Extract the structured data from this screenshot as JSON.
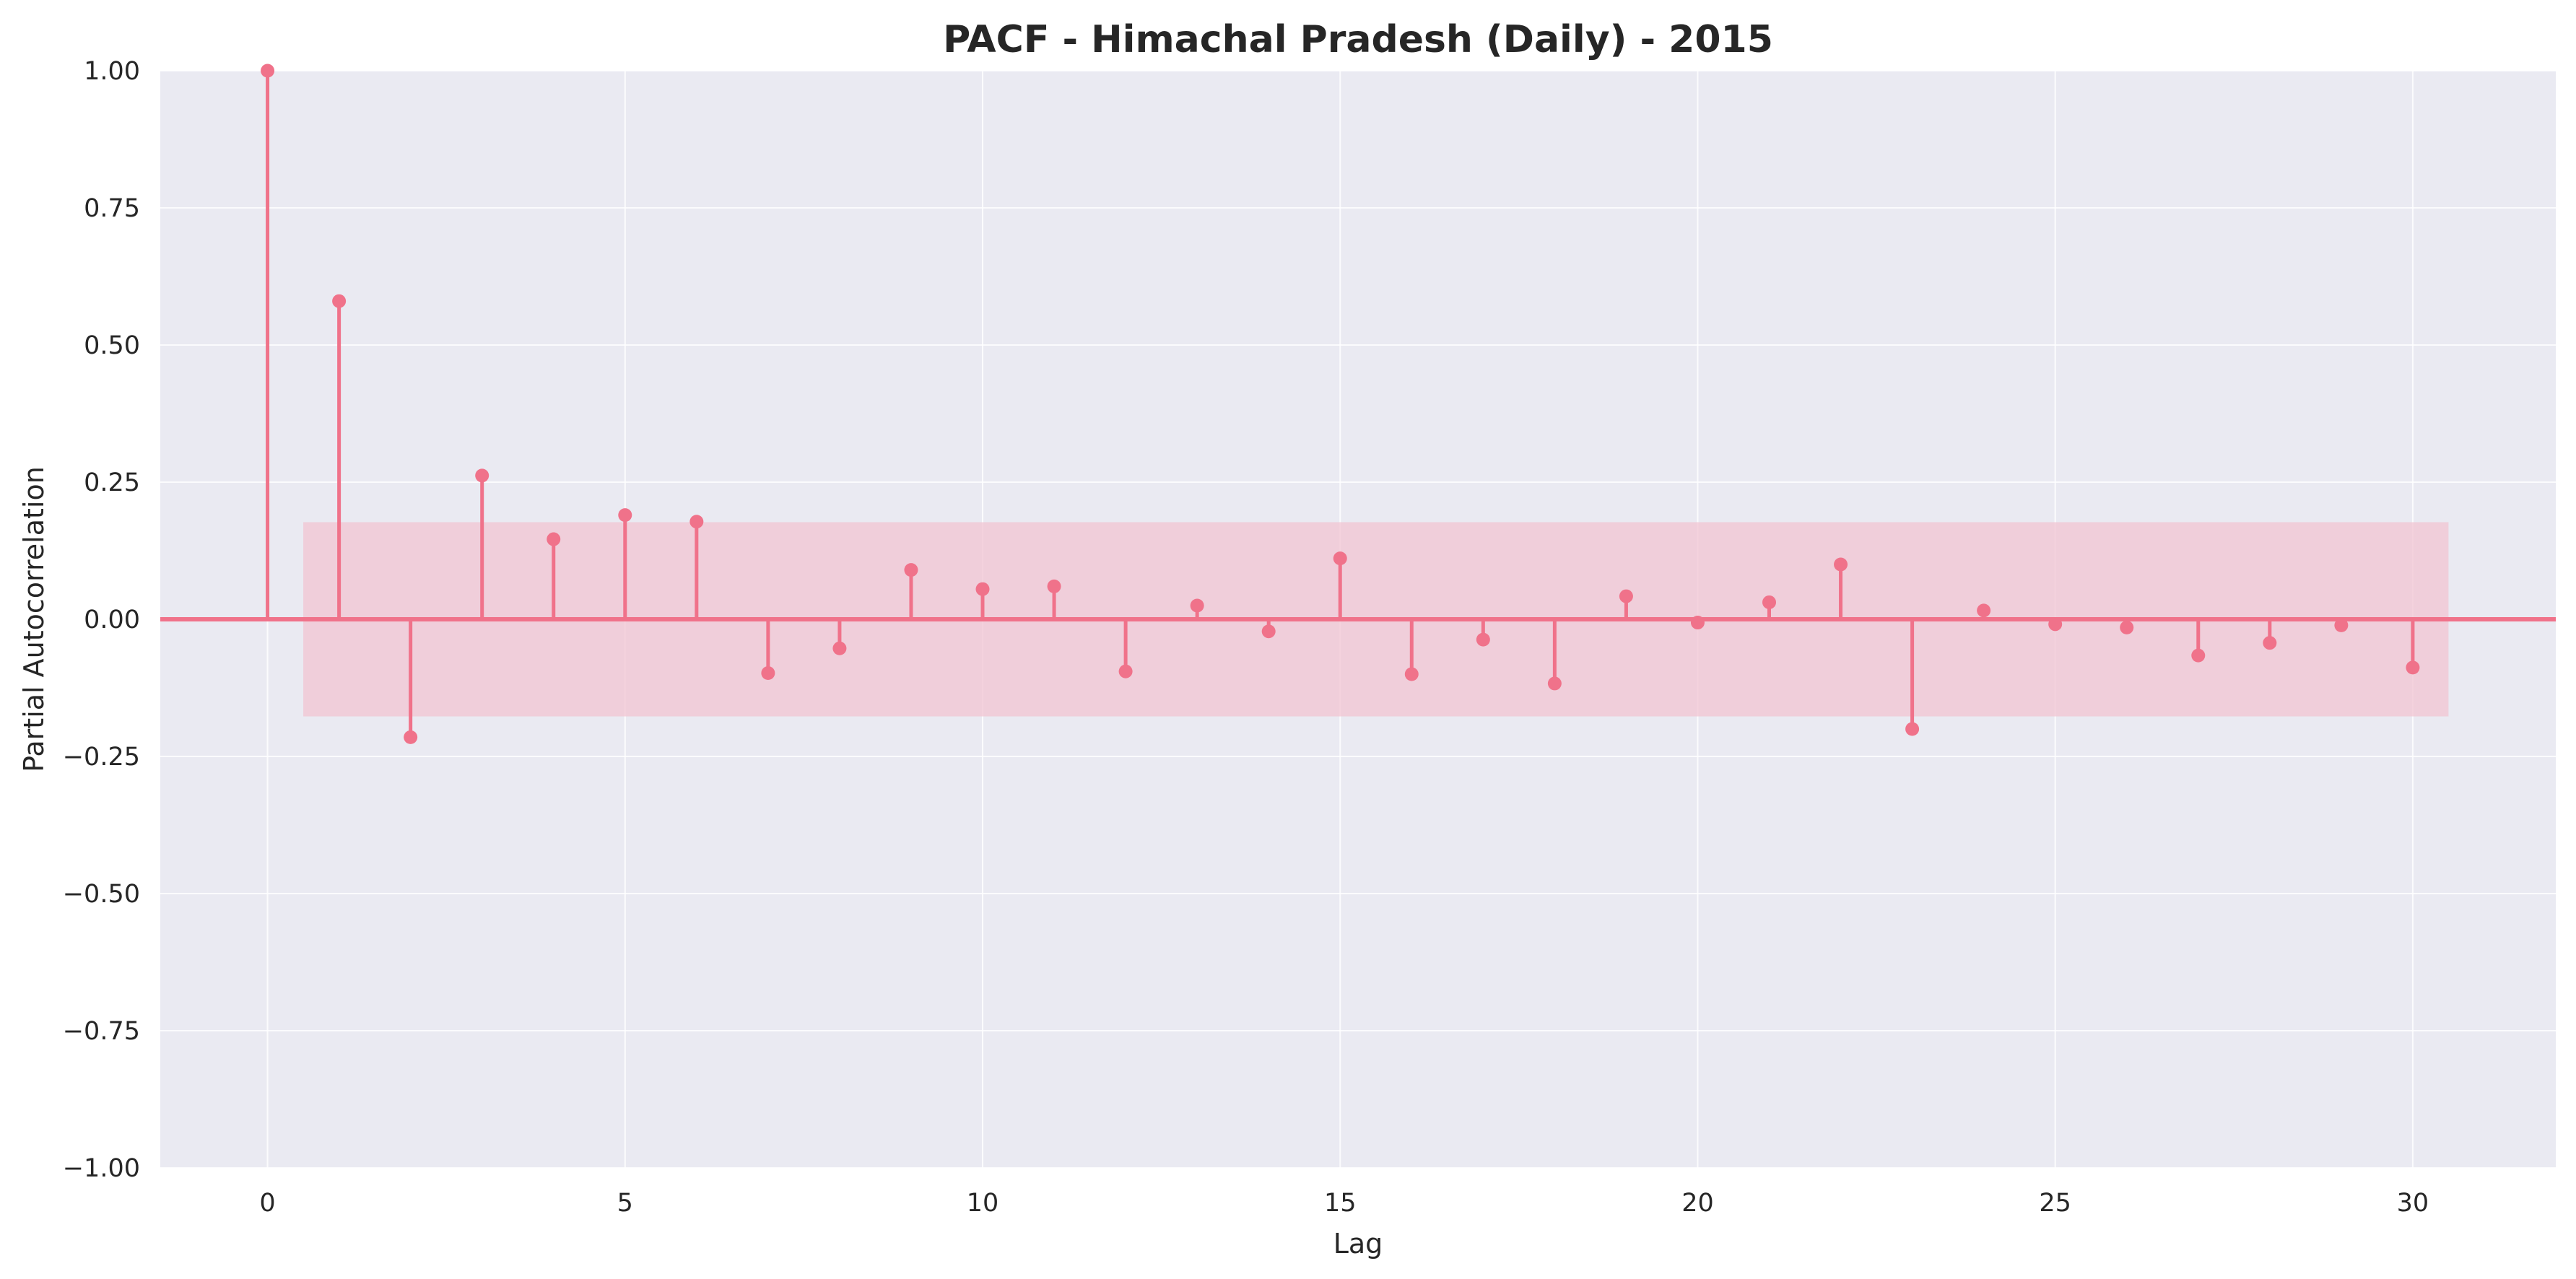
{
  "chart_data": {
    "type": "stem",
    "title": "PACF - Himachal Pradesh (Daily) - 2015",
    "xlabel": "Lag",
    "ylabel": "Partial Autocorrelation",
    "xlim": [
      -1.5,
      32
    ],
    "ylim": [
      -1.0,
      1.0
    ],
    "xticks": [
      0,
      5,
      10,
      15,
      20,
      25,
      30
    ],
    "xtick_labels": [
      "0",
      "5",
      "10",
      "15",
      "20",
      "25",
      "30"
    ],
    "yticks": [
      -1.0,
      -0.75,
      -0.5,
      -0.25,
      0.0,
      0.25,
      0.5,
      0.75,
      1.0
    ],
    "ytick_labels": [
      "−1.00",
      "−0.75",
      "−0.50",
      "−0.25",
      "0.00",
      "0.25",
      "0.50",
      "0.75",
      "1.00"
    ],
    "grid": true,
    "confidence_band": {
      "lower": -0.177,
      "upper": 0.177,
      "x_start": 0.5,
      "x_end": 30.5
    },
    "lags": [
      0,
      1,
      2,
      3,
      4,
      5,
      6,
      7,
      8,
      9,
      10,
      11,
      12,
      13,
      14,
      15,
      16,
      17,
      18,
      19,
      20,
      21,
      22,
      23,
      24,
      25,
      26,
      27,
      28,
      29,
      30
    ],
    "values": [
      1.0,
      0.58,
      -0.215,
      0.262,
      0.146,
      0.19,
      0.178,
      -0.098,
      -0.053,
      0.09,
      0.055,
      0.06,
      -0.095,
      0.025,
      -0.022,
      0.111,
      -0.1,
      -0.037,
      -0.117,
      0.042,
      -0.006,
      0.031,
      0.1,
      -0.2,
      0.016,
      -0.009,
      -0.015,
      -0.066,
      -0.043,
      -0.011,
      -0.088
    ],
    "colors": {
      "stem": "#f0728a",
      "band": "#f2c4d1",
      "plot_bg": "#eaeaf2",
      "grid": "#ffffff",
      "text": "#262626"
    }
  }
}
